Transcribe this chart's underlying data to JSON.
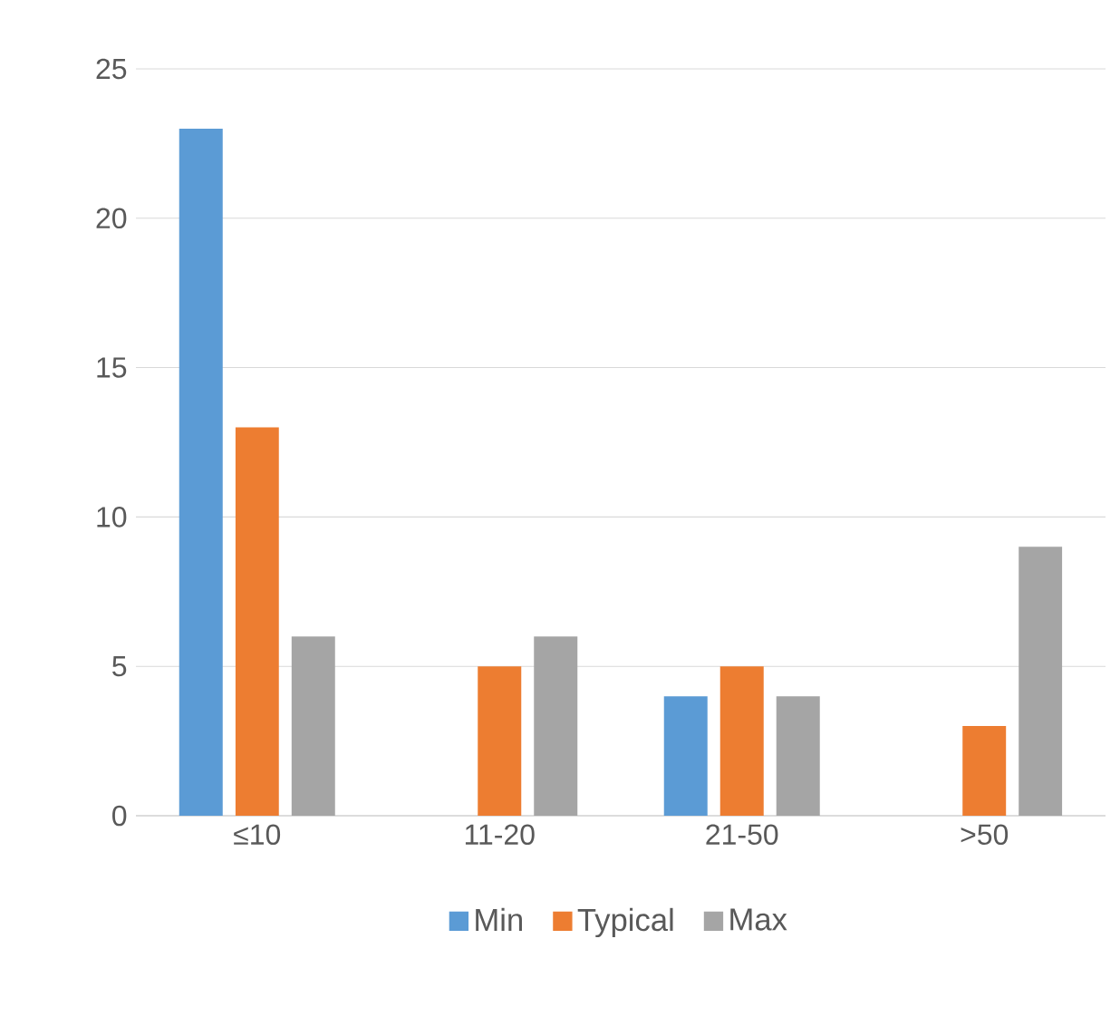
{
  "chart_data": {
    "type": "bar",
    "categories": [
      "≤10",
      "11-20",
      "21-50",
      ">50"
    ],
    "series": [
      {
        "name": "Min",
        "color": "#5b9bd5",
        "values": [
          23,
          0,
          4,
          0
        ]
      },
      {
        "name": "Typical",
        "color": "#ed7d31",
        "values": [
          13,
          5,
          5,
          3
        ]
      },
      {
        "name": "Max",
        "color": "#a5a5a5",
        "values": [
          6,
          6,
          4,
          9
        ]
      }
    ],
    "ylim": [
      0,
      25
    ],
    "yticks": [
      0,
      5,
      10,
      15,
      20,
      25
    ],
    "grid": "y",
    "legend": "bottom"
  }
}
